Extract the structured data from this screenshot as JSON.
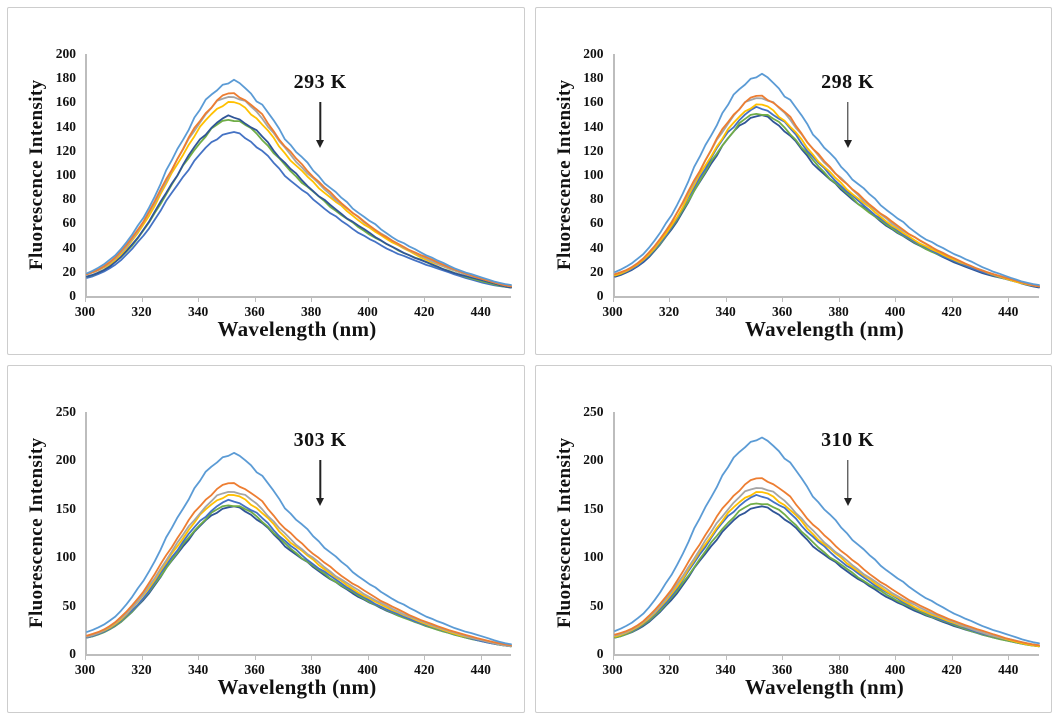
{
  "figure": {
    "description_visible_text_only": true,
    "axis_color": "#bdbdbd",
    "text_color": "#111111",
    "panel_border_color": "#cdcdcd"
  },
  "chart_data": [
    {
      "type": "line",
      "annotation": "293 K",
      "xlabel": "Wavelength (nm)",
      "ylabel": "Fluorescence Intensity",
      "xlim": [
        300,
        450
      ],
      "ylim": [
        0,
        200
      ],
      "x_ticks": [
        300,
        320,
        340,
        360,
        380,
        400,
        420,
        440
      ],
      "y_ticks": [
        0,
        20,
        40,
        60,
        80,
        100,
        120,
        140,
        160,
        180,
        200
      ],
      "x_nm": [
        300,
        310,
        320,
        330,
        340,
        350,
        360,
        370,
        380,
        390,
        400,
        410,
        420,
        430,
        440,
        450
      ],
      "legend": "none",
      "grid": false,
      "series": [
        {
          "name": "curve-light-blue",
          "color": "#5B9BD5",
          "values": [
            19,
            34,
            65,
            112,
            154,
            177,
            163,
            131,
            104,
            81,
            62,
            46,
            34,
            23,
            15,
            9
          ]
        },
        {
          "name": "curve-orange",
          "color": "#ED7D31",
          "values": [
            18,
            32,
            62,
            105,
            145,
            167,
            154,
            124,
            99,
            77,
            58,
            43,
            32,
            22,
            14,
            8
          ]
        },
        {
          "name": "curve-gray",
          "color": "#A5A5A5",
          "values": [
            18,
            31,
            61,
            104,
            144,
            165,
            152,
            122,
            97,
            76,
            58,
            43,
            31,
            21,
            14,
            8
          ]
        },
        {
          "name": "curve-yellow",
          "color": "#FFC000",
          "values": [
            18,
            30,
            59,
            101,
            139,
            160,
            147,
            118,
            94,
            74,
            56,
            42,
            30,
            21,
            14,
            8
          ]
        },
        {
          "name": "curve-navy",
          "color": "#2F5597",
          "values": [
            16,
            28,
            55,
            93,
            129,
            148,
            136,
            110,
            87,
            68,
            52,
            38,
            28,
            19,
            13,
            7
          ]
        },
        {
          "name": "curve-green",
          "color": "#70AD47",
          "values": [
            16,
            28,
            54,
            92,
            127,
            146,
            134,
            108,
            86,
            67,
            51,
            38,
            28,
            19,
            12,
            7
          ]
        },
        {
          "name": "curve-blue",
          "color": "#4472C4",
          "values": [
            15,
            26,
            50,
            85,
            117,
            135,
            124,
            100,
            80,
            62,
            47,
            35,
            26,
            18,
            11,
            7
          ]
        }
      ]
    },
    {
      "type": "line",
      "annotation": "298 K",
      "xlabel": "Wavelength (nm)",
      "ylabel": "Fluorescence Intensity",
      "xlim": [
        300,
        450
      ],
      "ylim": [
        0,
        200
      ],
      "x_ticks": [
        300,
        320,
        340,
        360,
        380,
        400,
        420,
        440
      ],
      "y_ticks": [
        0,
        20,
        40,
        60,
        80,
        100,
        120,
        140,
        160,
        180,
        200
      ],
      "x_nm": [
        300,
        310,
        320,
        330,
        340,
        350,
        360,
        370,
        380,
        390,
        400,
        410,
        420,
        430,
        440,
        450
      ],
      "legend": "none",
      "grid": false,
      "series": [
        {
          "name": "curve-light-blue",
          "color": "#5B9BD5",
          "values": [
            20,
            35,
            67,
            115,
            158,
            182,
            167,
            135,
            107,
            84,
            64,
            47,
            35,
            24,
            15,
            9
          ]
        },
        {
          "name": "curve-orange",
          "color": "#ED7D31",
          "values": [
            18,
            31,
            61,
            104,
            144,
            165,
            152,
            122,
            97,
            76,
            58,
            43,
            31,
            21,
            14,
            8
          ]
        },
        {
          "name": "curve-gray",
          "color": "#A5A5A5",
          "values": [
            18,
            31,
            61,
            103,
            143,
            164,
            151,
            121,
            97,
            75,
            57,
            43,
            31,
            21,
            14,
            8
          ]
        },
        {
          "name": "curve-yellow",
          "color": "#FFC000",
          "values": [
            17,
            30,
            58,
            100,
            137,
            158,
            145,
            117,
            93,
            73,
            55,
            41,
            30,
            21,
            13,
            8
          ]
        },
        {
          "name": "curve-blue",
          "color": "#4472C4",
          "values": [
            17,
            29,
            57,
            98,
            135,
            155,
            143,
            115,
            91,
            71,
            54,
            40,
            29,
            20,
            13,
            8
          ]
        },
        {
          "name": "curve-green",
          "color": "#70AD47",
          "values": [
            17,
            29,
            56,
            95,
            131,
            151,
            139,
            112,
            89,
            69,
            53,
            39,
            29,
            20,
            13,
            8
          ]
        },
        {
          "name": "curve-navy",
          "color": "#2F5597",
          "values": [
            16,
            28,
            55,
            94,
            130,
            149,
            137,
            110,
            88,
            69,
            52,
            39,
            28,
            19,
            13,
            7
          ]
        }
      ]
    },
    {
      "type": "line",
      "annotation": "303 K",
      "xlabel": "Wavelength (nm)",
      "ylabel": "Fluorescence Intensity",
      "xlim": [
        300,
        450
      ],
      "ylim": [
        0,
        250
      ],
      "x_ticks": [
        300,
        320,
        340,
        360,
        380,
        400,
        420,
        440
      ],
      "y_ticks": [
        0,
        50,
        100,
        150,
        200,
        250
      ],
      "x_nm": [
        300,
        310,
        320,
        330,
        340,
        350,
        360,
        370,
        380,
        390,
        400,
        410,
        420,
        430,
        440,
        450
      ],
      "legend": "none",
      "grid": false,
      "series": [
        {
          "name": "curve-light-blue",
          "color": "#5B9BD5",
          "values": [
            23,
            39,
            76,
            130,
            179,
            206,
            190,
            152,
            122,
            95,
            72,
            54,
            39,
            27,
            18,
            10
          ]
        },
        {
          "name": "curve-orange",
          "color": "#ED7D31",
          "values": [
            19,
            33,
            65,
            111,
            153,
            176,
            162,
            130,
            104,
            81,
            62,
            46,
            33,
            23,
            15,
            9
          ]
        },
        {
          "name": "curve-gray",
          "color": "#A5A5A5",
          "values": [
            18,
            32,
            62,
            106,
            146,
            168,
            155,
            124,
            99,
            77,
            59,
            44,
            32,
            22,
            14,
            8
          ]
        },
        {
          "name": "curve-yellow",
          "color": "#FFC000",
          "values": [
            18,
            31,
            61,
            103,
            143,
            164,
            151,
            121,
            97,
            75,
            57,
            43,
            31,
            21,
            14,
            8
          ]
        },
        {
          "name": "curve-blue",
          "color": "#4472C4",
          "values": [
            17,
            30,
            58,
            100,
            137,
            158,
            145,
            117,
            93,
            73,
            55,
            41,
            30,
            21,
            13,
            8
          ]
        },
        {
          "name": "curve-green",
          "color": "#70AD47",
          "values": [
            17,
            29,
            57,
            97,
            134,
            154,
            142,
            114,
            91,
            71,
            54,
            40,
            29,
            20,
            13,
            8
          ]
        },
        {
          "name": "curve-navy",
          "color": "#2F5597",
          "values": [
            17,
            29,
            56,
            96,
            132,
            152,
            140,
            112,
            90,
            70,
            53,
            40,
            29,
            20,
            13,
            8
          ]
        }
      ]
    },
    {
      "type": "line",
      "annotation": "310 K",
      "xlabel": "Wavelength (nm)",
      "ylabel": "Fluorescence Intensity",
      "xlim": [
        300,
        450
      ],
      "ylim": [
        0,
        250
      ],
      "x_ticks": [
        300,
        320,
        340,
        360,
        380,
        400,
        420,
        440
      ],
      "y_ticks": [
        0,
        50,
        100,
        150,
        200,
        250
      ],
      "x_nm": [
        300,
        310,
        320,
        330,
        340,
        350,
        360,
        370,
        380,
        390,
        400,
        410,
        420,
        430,
        440,
        450
      ],
      "legend": "none",
      "grid": false,
      "series": [
        {
          "name": "curve-light-blue",
          "color": "#5B9BD5",
          "values": [
            24,
            42,
            82,
            140,
            193,
            222,
            204,
            164,
            131,
            102,
            78,
            58,
            42,
            29,
            19,
            11
          ]
        },
        {
          "name": "curve-orange",
          "color": "#ED7D31",
          "values": [
            20,
            34,
            67,
            114,
            157,
            181,
            167,
            134,
            107,
            83,
            63,
            47,
            34,
            24,
            15,
            9
          ]
        },
        {
          "name": "curve-gray",
          "color": "#A5A5A5",
          "values": [
            19,
            33,
            64,
            108,
            150,
            172,
            158,
            127,
            101,
            79,
            60,
            45,
            33,
            22,
            15,
            9
          ]
        },
        {
          "name": "curve-yellow",
          "color": "#FFC000",
          "values": [
            18,
            32,
            62,
            105,
            145,
            167,
            154,
            124,
            99,
            77,
            58,
            43,
            32,
            22,
            14,
            8
          ]
        },
        {
          "name": "curve-blue",
          "color": "#4472C4",
          "values": [
            18,
            31,
            60,
            103,
            142,
            163,
            150,
            121,
            96,
            75,
            57,
            42,
            31,
            21,
            14,
            8
          ]
        },
        {
          "name": "curve-green",
          "color": "#70AD47",
          "values": [
            17,
            30,
            58,
            98,
            136,
            156,
            144,
            115,
            92,
            72,
            55,
            41,
            30,
            20,
            13,
            8
          ]
        },
        {
          "name": "curve-navy",
          "color": "#2F5597",
          "values": [
            17,
            29,
            56,
            96,
            132,
            152,
            140,
            112,
            90,
            70,
            53,
            40,
            29,
            20,
            13,
            8
          ]
        }
      ]
    }
  ]
}
